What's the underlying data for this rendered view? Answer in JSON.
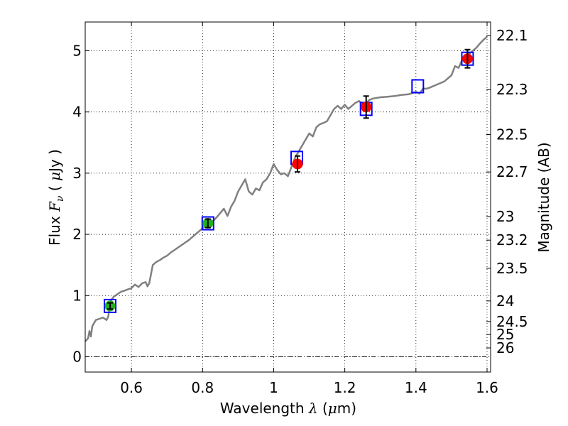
{
  "chart_data": {
    "type": "line",
    "xlabel": {
      "prefix": "Wavelength  ",
      "symbol": "λ",
      "unit_open": " (",
      "unit_mu": "μ",
      "unit_rest": "m)"
    },
    "ylabel": {
      "prefix": "Flux  ",
      "symbol": "F",
      "subscript": "ν",
      "unit_open": "  ( ",
      "unit_mu": "μ",
      "unit_rest": "Jy )"
    },
    "y2label": "Magnitude (AB)",
    "xlim": [
      0.47,
      1.61
    ],
    "ylim": [
      -0.25,
      5.47
    ],
    "grid": true,
    "zero_line": true,
    "x_ticks": [
      {
        "v": 0.6,
        "label": "0.6"
      },
      {
        "v": 0.8,
        "label": "0.8"
      },
      {
        "v": 1.0,
        "label": "1"
      },
      {
        "v": 1.2,
        "label": "1.2"
      },
      {
        "v": 1.4,
        "label": "1.4"
      },
      {
        "v": 1.6,
        "label": "1.6"
      }
    ],
    "y_ticks": [
      {
        "v": 0,
        "label": "0"
      },
      {
        "v": 1,
        "label": "1"
      },
      {
        "v": 2,
        "label": "2"
      },
      {
        "v": 3,
        "label": "3"
      },
      {
        "v": 4,
        "label": "4"
      },
      {
        "v": 5,
        "label": "5"
      }
    ],
    "mag_ticks": [
      {
        "mag": 22.1,
        "label": "22.1"
      },
      {
        "mag": 22.3,
        "label": "22.3"
      },
      {
        "mag": 22.5,
        "label": "22.5"
      },
      {
        "mag": 22.7,
        "label": "22.7"
      },
      {
        "mag": 23.0,
        "label": "23"
      },
      {
        "mag": 23.2,
        "label": "23.2"
      },
      {
        "mag": 23.5,
        "label": "23.5"
      },
      {
        "mag": 24.0,
        "label": "24"
      },
      {
        "mag": 24.5,
        "label": "24.5"
      },
      {
        "mag": 25.0,
        "label": "25"
      },
      {
        "mag": 26.0,
        "label": "26"
      }
    ],
    "series": [
      {
        "kind": "model-spectrum",
        "color": "#808080",
        "points": [
          [
            0.47,
            0.25
          ],
          [
            0.478,
            0.3
          ],
          [
            0.482,
            0.42
          ],
          [
            0.486,
            0.33
          ],
          [
            0.49,
            0.5
          ],
          [
            0.5,
            0.6
          ],
          [
            0.51,
            0.62
          ],
          [
            0.52,
            0.64
          ],
          [
            0.53,
            0.6
          ],
          [
            0.535,
            0.66
          ],
          [
            0.54,
            0.9
          ],
          [
            0.55,
            0.98
          ],
          [
            0.56,
            1.02
          ],
          [
            0.57,
            1.06
          ],
          [
            0.58,
            1.08
          ],
          [
            0.59,
            1.1
          ],
          [
            0.6,
            1.12
          ],
          [
            0.61,
            1.18
          ],
          [
            0.62,
            1.14
          ],
          [
            0.63,
            1.2
          ],
          [
            0.64,
            1.22
          ],
          [
            0.645,
            1.15
          ],
          [
            0.65,
            1.2
          ],
          [
            0.655,
            1.35
          ],
          [
            0.66,
            1.5
          ],
          [
            0.67,
            1.55
          ],
          [
            0.68,
            1.58
          ],
          [
            0.69,
            1.62
          ],
          [
            0.7,
            1.65
          ],
          [
            0.71,
            1.7
          ],
          [
            0.72,
            1.74
          ],
          [
            0.73,
            1.78
          ],
          [
            0.74,
            1.82
          ],
          [
            0.75,
            1.86
          ],
          [
            0.76,
            1.9
          ],
          [
            0.77,
            1.95
          ],
          [
            0.78,
            2.0
          ],
          [
            0.79,
            2.05
          ],
          [
            0.8,
            2.1
          ],
          [
            0.81,
            2.15
          ],
          [
            0.82,
            2.18
          ],
          [
            0.83,
            2.22
          ],
          [
            0.84,
            2.28
          ],
          [
            0.85,
            2.35
          ],
          [
            0.86,
            2.42
          ],
          [
            0.87,
            2.3
          ],
          [
            0.88,
            2.45
          ],
          [
            0.89,
            2.55
          ],
          [
            0.9,
            2.7
          ],
          [
            0.91,
            2.8
          ],
          [
            0.92,
            2.9
          ],
          [
            0.93,
            2.7
          ],
          [
            0.94,
            2.65
          ],
          [
            0.95,
            2.75
          ],
          [
            0.96,
            2.72
          ],
          [
            0.97,
            2.85
          ],
          [
            0.98,
            2.9
          ],
          [
            0.99,
            3.0
          ],
          [
            1.0,
            3.15
          ],
          [
            1.01,
            3.05
          ],
          [
            1.02,
            2.98
          ],
          [
            1.03,
            3.0
          ],
          [
            1.04,
            2.95
          ],
          [
            1.05,
            3.1
          ],
          [
            1.06,
            3.25
          ],
          [
            1.07,
            3.35
          ],
          [
            1.08,
            3.45
          ],
          [
            1.09,
            3.55
          ],
          [
            1.1,
            3.65
          ],
          [
            1.11,
            3.6
          ],
          [
            1.12,
            3.75
          ],
          [
            1.13,
            3.8
          ],
          [
            1.14,
            3.82
          ],
          [
            1.15,
            3.85
          ],
          [
            1.16,
            3.95
          ],
          [
            1.17,
            4.05
          ],
          [
            1.18,
            4.1
          ],
          [
            1.19,
            4.05
          ],
          [
            1.2,
            4.12
          ],
          [
            1.21,
            4.05
          ],
          [
            1.22,
            4.1
          ],
          [
            1.23,
            4.15
          ],
          [
            1.24,
            4.18
          ],
          [
            1.25,
            4.12
          ],
          [
            1.26,
            4.15
          ],
          [
            1.27,
            4.2
          ],
          [
            1.28,
            4.22
          ],
          [
            1.3,
            4.24
          ],
          [
            1.32,
            4.25
          ],
          [
            1.34,
            4.26
          ],
          [
            1.36,
            4.28
          ],
          [
            1.38,
            4.29
          ],
          [
            1.4,
            4.33
          ],
          [
            1.41,
            4.3
          ],
          [
            1.42,
            4.38
          ],
          [
            1.43,
            4.38
          ],
          [
            1.44,
            4.4
          ],
          [
            1.46,
            4.45
          ],
          [
            1.48,
            4.5
          ],
          [
            1.5,
            4.6
          ],
          [
            1.51,
            4.75
          ],
          [
            1.52,
            4.72
          ],
          [
            1.53,
            4.85
          ],
          [
            1.54,
            4.92
          ],
          [
            1.55,
            4.95
          ],
          [
            1.56,
            5.0
          ],
          [
            1.57,
            5.05
          ],
          [
            1.58,
            5.12
          ],
          [
            1.59,
            5.18
          ],
          [
            1.6,
            5.23
          ]
        ]
      },
      {
        "kind": "synthetic-photometry-squares",
        "color": "#0000ff",
        "points": [
          [
            0.54,
            0.83
          ],
          [
            0.815,
            2.18
          ],
          [
            1.065,
            3.25
          ],
          [
            1.26,
            4.05
          ],
          [
            1.405,
            4.42
          ],
          [
            1.545,
            4.87
          ]
        ]
      },
      {
        "kind": "observed-photometry",
        "points": [
          {
            "x": 0.54,
            "y": 0.83,
            "err": 0.05,
            "color": "#20b020"
          },
          {
            "x": 0.815,
            "y": 2.18,
            "err": 0.07,
            "color": "#20b020"
          },
          {
            "x": 1.067,
            "y": 3.15,
            "err": 0.13,
            "color": "#ff0000"
          },
          {
            "x": 1.26,
            "y": 4.08,
            "err": 0.18,
            "color": "#ff0000"
          },
          {
            "x": 1.545,
            "y": 4.87,
            "err": 0.15,
            "color": "#ff0000"
          }
        ]
      }
    ]
  }
}
